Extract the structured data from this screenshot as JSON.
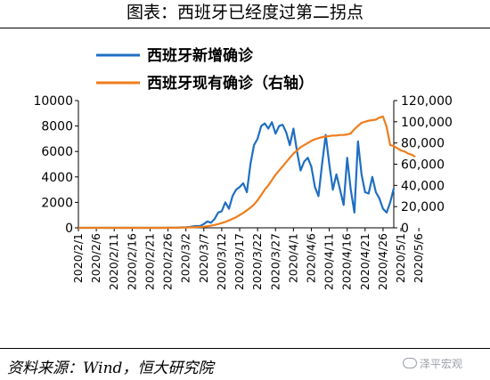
{
  "header": {
    "title": "图表：西班牙已经度过第二拐点"
  },
  "footer": {
    "source": "资料来源：Wind，恒大研究院",
    "watermark": "泽平宏观"
  },
  "chart_data": {
    "type": "line",
    "title": "图表：西班牙已经度过第二拐点",
    "legend_position": "top",
    "grid": false,
    "x_tick_labels": [
      "2020/2/1",
      "2020/2/6",
      "2020/2/11",
      "2020/2/16",
      "2020/2/21",
      "2020/2/26",
      "2020/3/2",
      "2020/3/7",
      "2020/3/12",
      "2020/3/17",
      "2020/3/22",
      "2020/3/27",
      "2020/4/1",
      "2020/4/6",
      "2020/4/11",
      "2020/4/16",
      "2020/4/21",
      "2020/4/26",
      "2020/5/1",
      "2020/5/6"
    ],
    "y_left": {
      "range": [
        0,
        10000
      ],
      "ticks": [
        "0",
        "2000",
        "4000",
        "6000",
        "8000",
        "10000"
      ]
    },
    "y_right": {
      "range": [
        0,
        120000
      ],
      "ticks": [
        "0",
        "20,000",
        "40,000",
        "60,000",
        "80,000",
        "100,000",
        "120,000"
      ]
    },
    "series": [
      {
        "name": "西班牙新增确诊",
        "color": "#1f6fc2",
        "axis": "left",
        "start_date": "2020/2/1",
        "values": [
          0,
          0,
          0,
          0,
          0,
          0,
          0,
          0,
          1,
          0,
          0,
          0,
          0,
          0,
          0,
          0,
          0,
          0,
          0,
          0,
          0,
          0,
          0,
          1,
          2,
          6,
          5,
          8,
          20,
          32,
          40,
          60,
          110,
          140,
          150,
          300,
          500,
          400,
          700,
          1200,
          1300,
          2000,
          1500,
          2500,
          3000,
          3200,
          3500,
          2800,
          5000,
          6500,
          7000,
          8000,
          8200,
          7800,
          8300,
          7400,
          8000,
          8100,
          7500,
          6500,
          7800,
          6000,
          4500,
          5200,
          5500,
          4800,
          3200,
          2500,
          5000,
          7300,
          5000,
          3000,
          4200,
          3000,
          1800,
          5500,
          3000,
          1200,
          6800,
          4200,
          2800,
          2700,
          4000,
          2800,
          2300,
          1500,
          1200,
          2000,
          3100
        ]
      },
      {
        "name": "西班牙现有确诊（右轴）",
        "color": "#ee7d1c",
        "axis": "right",
        "start_date": "2020/2/1",
        "values": [
          0,
          0,
          0,
          0,
          0,
          0,
          0,
          0,
          1,
          1,
          1,
          1,
          1,
          1,
          1,
          1,
          1,
          1,
          1,
          1,
          1,
          1,
          2,
          5,
          10,
          30,
          50,
          100,
          150,
          220,
          300,
          400,
          500,
          650,
          800,
          1000,
          1500,
          2000,
          2700,
          3500,
          4500,
          5500,
          7000,
          8500,
          10000,
          12000,
          14000,
          16500,
          19000,
          22000,
          26000,
          31000,
          36000,
          40000,
          45000,
          50000,
          54000,
          58000,
          62000,
          66000,
          70000,
          73000,
          76000,
          78000,
          80000,
          82000,
          83500,
          84500,
          85500,
          86000,
          86500,
          87000,
          87000,
          87500,
          87500,
          88000,
          89000,
          93000,
          96000,
          99000,
          100000,
          101000,
          101500,
          102000,
          104000,
          105000,
          95000,
          78000,
          77000,
          75000,
          73000,
          72000,
          70000,
          69000,
          67000
        ]
      }
    ]
  }
}
